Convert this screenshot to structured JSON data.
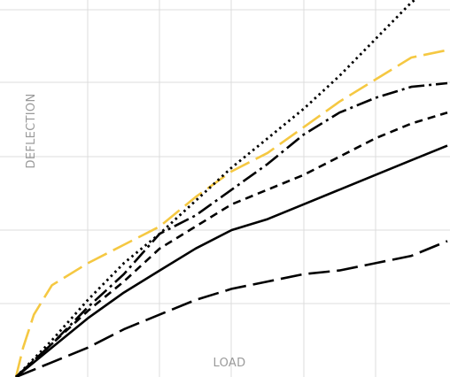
{
  "chart_data": {
    "type": "line",
    "title": "",
    "xlabel": "LOAD",
    "ylabel": "DEFLECTION",
    "xlim": [
      0,
      6
    ],
    "ylim": [
      0,
      5
    ],
    "grid": true,
    "legend": "none",
    "ticks_shown": false,
    "series": [
      {
        "color": "#f5c842",
        "style": "long-dash",
        "x": [
          0,
          0.1,
          0.25,
          0.5,
          1.0,
          1.5,
          2.0,
          2.5,
          3.0,
          3.5,
          4.0,
          4.5,
          5.0,
          5.5,
          6.0
        ],
        "y": [
          0,
          0.4,
          0.85,
          1.25,
          1.55,
          1.8,
          2.05,
          2.45,
          2.8,
          3.05,
          3.4,
          3.75,
          4.05,
          4.35,
          4.45
        ]
      },
      {
        "color": "#000000",
        "style": "dotted",
        "x": [
          0,
          0.5,
          1.0,
          1.5,
          2.0,
          2.5,
          3.0,
          3.5,
          4.0,
          4.5,
          5.0,
          5.5,
          6.0
        ],
        "y": [
          0,
          0.5,
          1.05,
          1.55,
          1.95,
          2.4,
          2.85,
          3.25,
          3.65,
          4.1,
          4.6,
          5.1,
          5.45
        ]
      },
      {
        "color": "#000000",
        "style": "dash-dot",
        "x": [
          0,
          0.5,
          1.0,
          1.5,
          2.0,
          2.5,
          3.0,
          3.5,
          4.0,
          4.5,
          5.0,
          5.5,
          6.0
        ],
        "y": [
          0,
          0.45,
          0.95,
          1.4,
          1.95,
          2.2,
          2.55,
          2.9,
          3.3,
          3.6,
          3.8,
          3.95,
          4.0
        ]
      },
      {
        "color": "#000000",
        "style": "short-dash",
        "x": [
          0,
          0.5,
          1.0,
          1.5,
          2.0,
          2.5,
          3.0,
          3.5,
          4.0,
          4.5,
          5.0,
          5.5,
          6.0
        ],
        "y": [
          0,
          0.45,
          0.9,
          1.3,
          1.75,
          2.05,
          2.35,
          2.55,
          2.75,
          3.0,
          3.25,
          3.45,
          3.6
        ]
      },
      {
        "color": "#000000",
        "style": "solid",
        "x": [
          0,
          0.5,
          1.0,
          1.5,
          2.0,
          2.5,
          3.0,
          3.5,
          4.0,
          4.5,
          5.0,
          5.5,
          6.0
        ],
        "y": [
          0,
          0.4,
          0.8,
          1.15,
          1.45,
          1.75,
          2.0,
          2.15,
          2.35,
          2.55,
          2.75,
          2.95,
          3.15
        ]
      },
      {
        "color": "#000000",
        "style": "long-dash",
        "x": [
          0,
          0.5,
          1.0,
          1.5,
          2.0,
          2.5,
          3.0,
          3.5,
          4.0,
          4.5,
          5.0,
          5.5,
          6.0
        ],
        "y": [
          0,
          0.2,
          0.4,
          0.65,
          0.85,
          1.05,
          1.2,
          1.3,
          1.4,
          1.45,
          1.55,
          1.65,
          1.85
        ]
      }
    ]
  }
}
